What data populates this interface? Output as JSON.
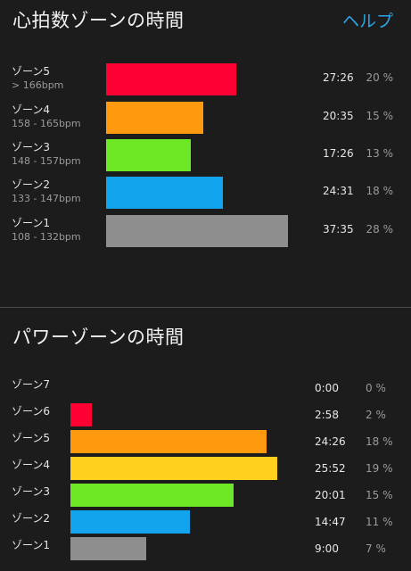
{
  "heart_rate": {
    "title": "心拍数ゾーンの時間",
    "help_label": "ヘルプ",
    "zones": [
      {
        "name": "ゾーン5",
        "range": "> 166bpm",
        "time": "27:26",
        "percent": "20 %",
        "share": 0.2,
        "color": "#ff0033"
      },
      {
        "name": "ゾーン4",
        "range": "158 - 165bpm",
        "time": "20:35",
        "percent": "15 %",
        "share": 0.15,
        "color": "#ff9a0e"
      },
      {
        "name": "ゾーン3",
        "range": "148 - 157bpm",
        "time": "17:26",
        "percent": "13 %",
        "share": 0.13,
        "color": "#6ee825"
      },
      {
        "name": "ゾーン2",
        "range": "133 - 147bpm",
        "time": "24:31",
        "percent": "18 %",
        "share": 0.18,
        "color": "#12a5ee"
      },
      {
        "name": "ゾーン1",
        "range": "108 - 132bpm",
        "time": "37:35",
        "percent": "28 %",
        "share": 0.28,
        "color": "#8e8e8e"
      }
    ]
  },
  "power": {
    "title": "パワーゾーンの時間",
    "zones": [
      {
        "name": "ゾーン7",
        "time": "0:00",
        "percent": "0 %",
        "share": 0.0,
        "color": "#b03ee0"
      },
      {
        "name": "ゾーン6",
        "time": "2:58",
        "percent": "2 %",
        "share": 0.02,
        "color": "#ff0033"
      },
      {
        "name": "ゾーン5",
        "time": "24:26",
        "percent": "18 %",
        "share": 0.18,
        "color": "#ff9a0e"
      },
      {
        "name": "ゾーン4",
        "time": "25:52",
        "percent": "19 %",
        "share": 0.19,
        "color": "#ffd11c"
      },
      {
        "name": "ゾーン3",
        "time": "20:01",
        "percent": "15 %",
        "share": 0.15,
        "color": "#6ee825"
      },
      {
        "name": "ゾーン2",
        "time": "14:47",
        "percent": "11 %",
        "share": 0.11,
        "color": "#12a5ee"
      },
      {
        "name": "ゾーン1",
        "time": "9:00",
        "percent": "7 %",
        "share": 0.07,
        "color": "#8e8e8e"
      }
    ]
  }
}
